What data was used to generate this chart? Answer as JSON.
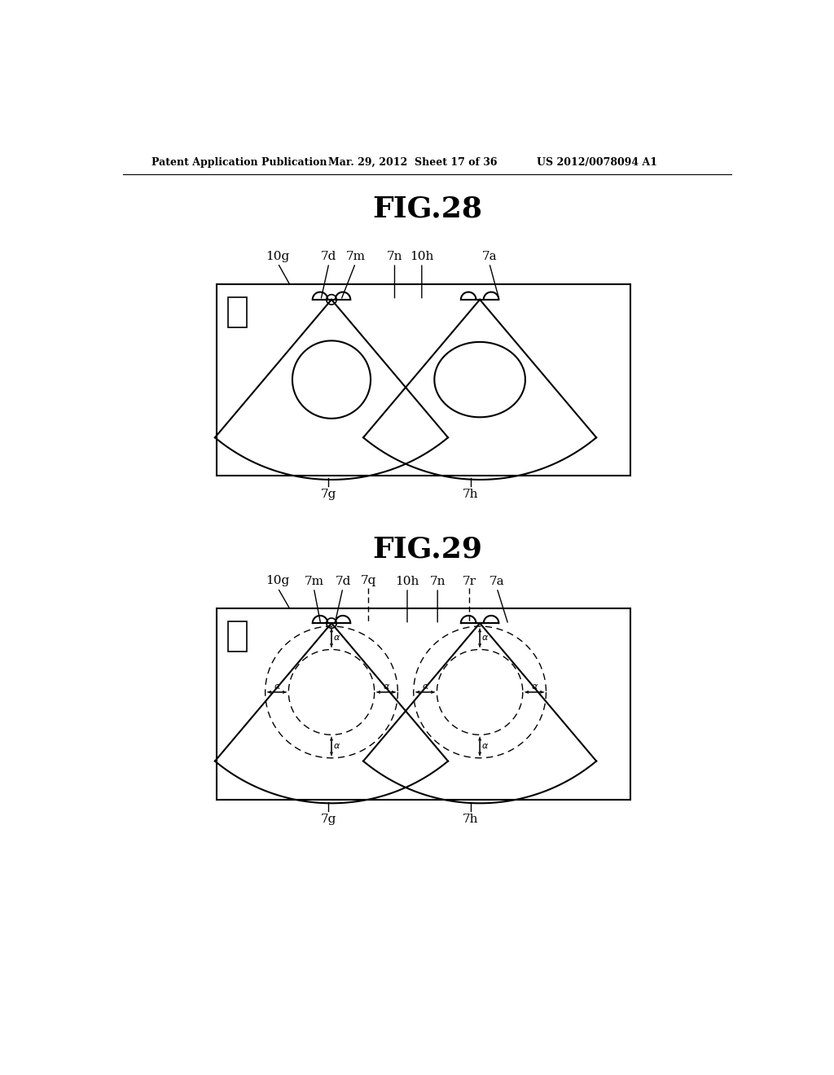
{
  "title28": "FIG.28",
  "title29": "FIG.29",
  "header_left": "Patent Application Publication",
  "header_mid": "Mar. 29, 2012  Sheet 17 of 36",
  "header_right": "US 2012/0078094 A1",
  "background": "#ffffff",
  "line_color": "#000000",
  "fig28_labels": [
    "10g",
    "7d",
    "7m",
    "7n",
    "10h",
    "7a"
  ],
  "fig29_labels": [
    "10g",
    "7m",
    "7d",
    "7q",
    "10h",
    "7n",
    "7r",
    "7a"
  ],
  "bottom_labels28": [
    "7g",
    "7h"
  ],
  "bottom_labels29": [
    "7g",
    "7h"
  ]
}
